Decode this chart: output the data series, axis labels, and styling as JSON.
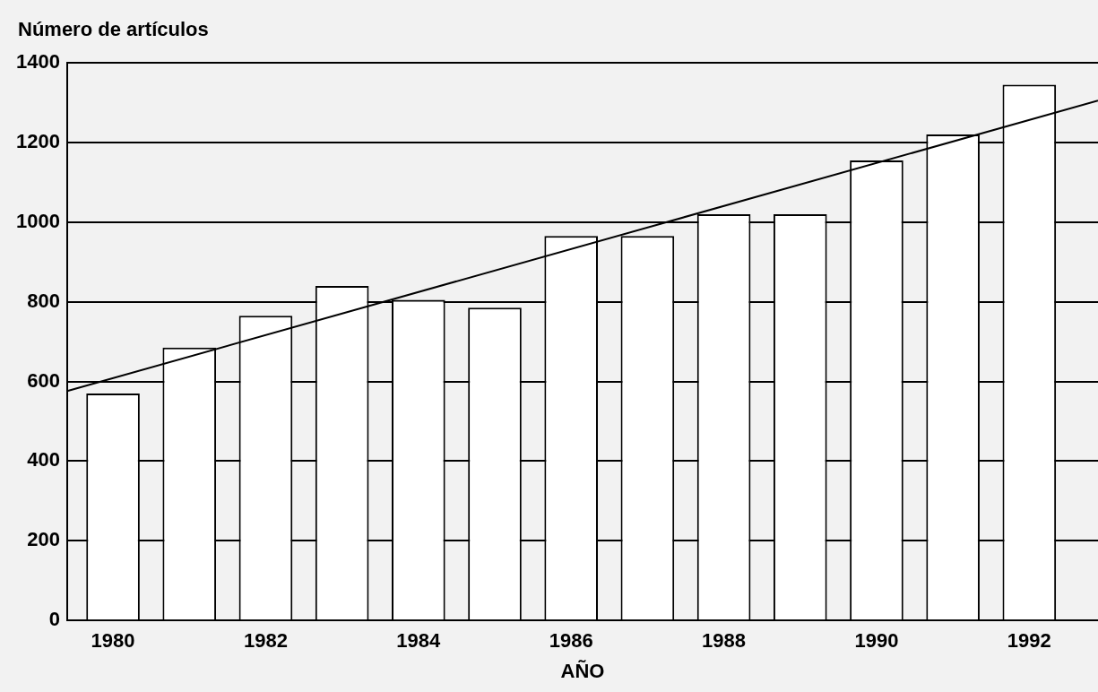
{
  "chart_data": {
    "type": "bar",
    "ylabel": "Número de artículos",
    "xlabel": "AÑO",
    "x": [
      1980,
      1981,
      1982,
      1983,
      1984,
      1985,
      1986,
      1987,
      1988,
      1989,
      1990,
      1991,
      1992
    ],
    "series": [
      {
        "color": "#ffffff",
        "values": [
          570,
          685,
          765,
          840,
          805,
          785,
          965,
          965,
          1020,
          1020,
          1155,
          1220,
          1345
        ]
      },
      {
        "type": "line",
        "color": "#000000",
        "x": [
          1979.4,
          1992.9
        ],
        "values": [
          576,
          1305
        ]
      }
    ],
    "xlim": [
      1979.4,
      1992.9
    ],
    "xticks": [
      1980,
      1982,
      1984,
      1986,
      1988,
      1990,
      1992
    ],
    "ylim": [
      0,
      1400
    ],
    "yticks": [
      0,
      200,
      400,
      600,
      800,
      1000,
      1200,
      1400
    ],
    "grid": "y",
    "legend": false,
    "marker": "none"
  }
}
